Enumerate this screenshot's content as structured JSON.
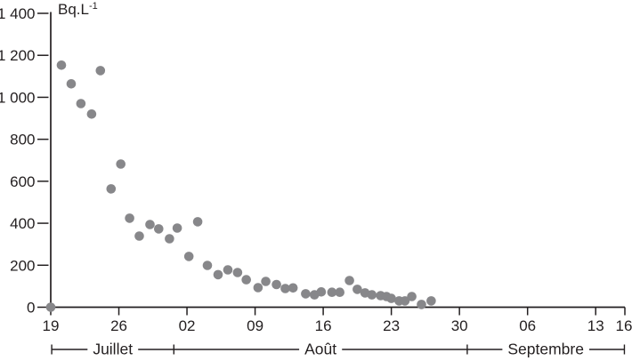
{
  "chart_data": {
    "type": "scatter",
    "title": "",
    "y_unit_label": {
      "base": "Bq.L",
      "exponent": "-1"
    },
    "point_color": "#87878a",
    "axis_color": "#231f20",
    "text_color": "#231f20",
    "grid": false,
    "legend": null,
    "x_axis": {
      "unit": "date (jour)",
      "range_days": [
        0,
        59
      ],
      "ticks": [
        {
          "label": "19",
          "day": 0
        },
        {
          "label": "26",
          "day": 7
        },
        {
          "label": "02",
          "day": 14
        },
        {
          "label": "09",
          "day": 21
        },
        {
          "label": "16",
          "day": 28
        },
        {
          "label": "23",
          "day": 35
        },
        {
          "label": "30",
          "day": 42
        },
        {
          "label": "06",
          "day": 49
        },
        {
          "label": "13",
          "day": 56
        },
        {
          "label": "16",
          "day": 59
        }
      ],
      "months": [
        {
          "label": "Juillet",
          "start_day": 0.1,
          "end_day": 12.65
        },
        {
          "label": "Août",
          "start_day": 12.65,
          "end_day": 42.8
        },
        {
          "label": "Septembre",
          "start_day": 42.8,
          "end_day": 58.95
        }
      ]
    },
    "y_axis": {
      "range": [
        0,
        1400
      ],
      "ticks": [
        {
          "label": "0",
          "value": 0
        },
        {
          "label": "200",
          "value": 200
        },
        {
          "label": "400",
          "value": 400
        },
        {
          "label": "600",
          "value": 600
        },
        {
          "label": "800",
          "value": 800
        },
        {
          "label": "1 000",
          "value": 1000
        },
        {
          "label": "1 200",
          "value": 1200
        },
        {
          "label": "1 400",
          "value": 1400
        }
      ]
    },
    "points": [
      [
        0.0,
        0
      ],
      [
        1.1,
        1153
      ],
      [
        2.1,
        1064
      ],
      [
        3.1,
        970
      ],
      [
        4.2,
        920
      ],
      [
        5.1,
        1127
      ],
      [
        6.2,
        564
      ],
      [
        7.2,
        682
      ],
      [
        8.1,
        424
      ],
      [
        9.1,
        339
      ],
      [
        10.2,
        394
      ],
      [
        11.1,
        373
      ],
      [
        12.2,
        326
      ],
      [
        13.0,
        377
      ],
      [
        14.2,
        242
      ],
      [
        15.1,
        407
      ],
      [
        16.1,
        199
      ],
      [
        17.2,
        155
      ],
      [
        18.2,
        178
      ],
      [
        19.2,
        165
      ],
      [
        20.1,
        131
      ],
      [
        21.3,
        93
      ],
      [
        22.1,
        123
      ],
      [
        23.2,
        108
      ],
      [
        24.1,
        89
      ],
      [
        24.9,
        92
      ],
      [
        26.2,
        64
      ],
      [
        27.1,
        59
      ],
      [
        27.8,
        73
      ],
      [
        28.9,
        71
      ],
      [
        29.7,
        71
      ],
      [
        30.7,
        127
      ],
      [
        31.5,
        85
      ],
      [
        32.3,
        68
      ],
      [
        33.0,
        59
      ],
      [
        33.9,
        55
      ],
      [
        34.5,
        51
      ],
      [
        35.0,
        42
      ],
      [
        35.8,
        30
      ],
      [
        36.4,
        30
      ],
      [
        37.1,
        51
      ],
      [
        38.1,
        13
      ],
      [
        39.1,
        30
      ]
    ]
  }
}
